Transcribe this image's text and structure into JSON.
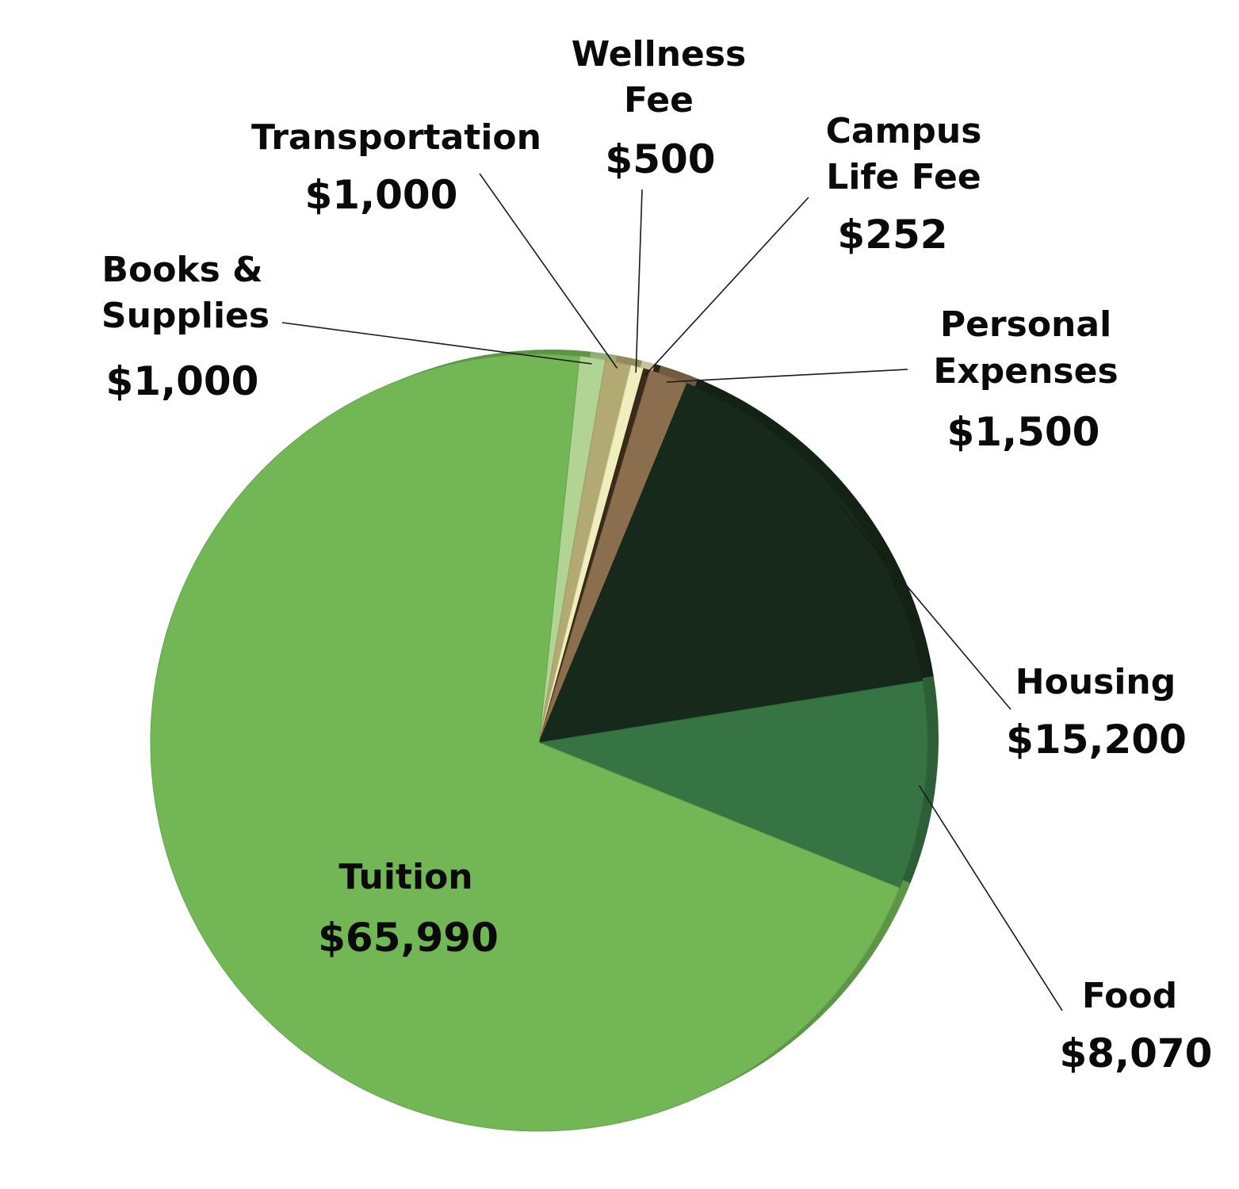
{
  "chart_data": {
    "type": "pie",
    "title": "",
    "series": [
      {
        "name": "Books & Supplies",
        "value": 1000,
        "value_label": "$1,000",
        "color": "#b1d393"
      },
      {
        "name": "Transportation",
        "value": 1000,
        "value_label": "$1,000",
        "color": "#b3a972"
      },
      {
        "name": "Wellness Fee",
        "value": 500,
        "value_label": "$500",
        "color": "#efeebc"
      },
      {
        "name": "Campus Life Fee",
        "value": 252,
        "value_label": "$252",
        "color": "#3a2a1a"
      },
      {
        "name": "Personal Expenses",
        "value": 1500,
        "value_label": "$1,500",
        "color": "#8b6e4e"
      },
      {
        "name": "Housing",
        "value": 15200,
        "value_label": "$15,200",
        "color": "#17291a"
      },
      {
        "name": "Food",
        "value": 8070,
        "value_label": "$8,070",
        "color": "#377443"
      },
      {
        "name": "Tuition",
        "value": 65990,
        "value_label": "$65,990",
        "color": "#72b656"
      }
    ],
    "legend": "none"
  }
}
